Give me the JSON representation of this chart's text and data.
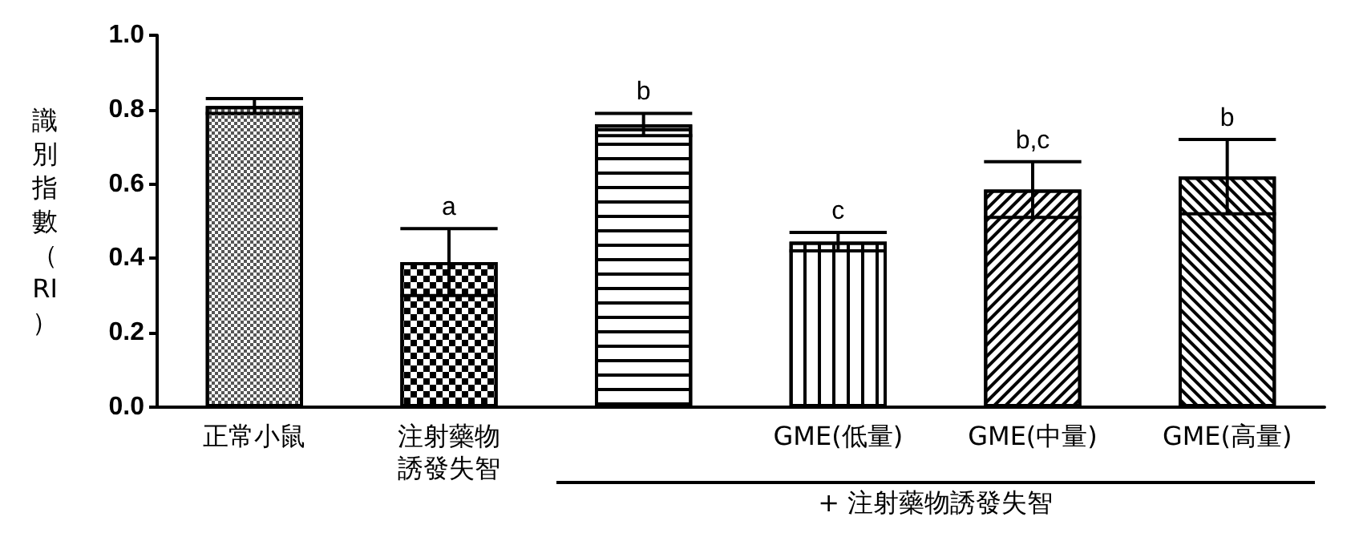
{
  "chart_data": {
    "type": "bar",
    "ylabel": "識別指數（RI）",
    "categories": [
      "正常小鼠",
      "注射藥物誘發失智",
      null,
      "GME(低量)",
      "GME(中量)",
      "GME(高量)"
    ],
    "values": [
      0.81,
      0.39,
      0.76,
      0.445,
      0.585,
      0.62
    ],
    "errors": [
      0.02,
      0.09,
      0.03,
      0.025,
      0.075,
      0.1
    ],
    "value_labels": [
      null,
      "a",
      "b",
      "c",
      "b,c",
      "b"
    ],
    "color": "#ffffff",
    "ylim": [
      0,
      1.0
    ],
    "yticks": [
      "0.0",
      0.2,
      0.4,
      0.6,
      0.8,
      "1.0"
    ],
    "annotations": [
      "+ 注射藥物誘發失智"
    ],
    "grid": false
  }
}
